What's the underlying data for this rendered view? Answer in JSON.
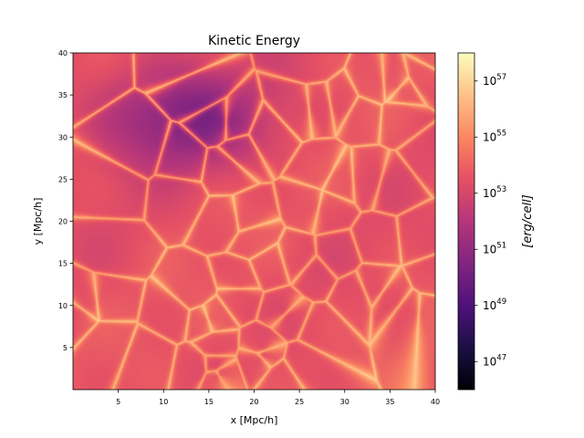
{
  "chart_data": {
    "type": "heatmap",
    "title": "Kinetic Energy",
    "xlabel": "x [Mpc/h]",
    "ylabel": "y [Mpc/h]",
    "xlim": [
      0,
      40
    ],
    "ylim": [
      0,
      40
    ],
    "xticks": [
      5,
      10,
      15,
      20,
      25,
      30,
      35,
      40
    ],
    "yticks": [
      5,
      10,
      15,
      20,
      25,
      30,
      35,
      40
    ],
    "grid": false,
    "colormap": "magma",
    "colorbar": {
      "label": "[erg/cell]",
      "scale": "log",
      "range_log10": [
        46,
        58
      ],
      "ticks_log10": [
        47,
        49,
        51,
        53,
        55,
        57
      ],
      "tick_base": "10"
    },
    "field_description_values": {
      "background_log10": 53.5,
      "filament_peak_log10": 56.5,
      "void_min_log10": 50.5
    },
    "colors": {
      "magma_stops": [
        "#000004",
        "#1c1044",
        "#4f127b",
        "#812581",
        "#b5367a",
        "#e55064",
        "#fb8761",
        "#fec287",
        "#fcfdbf"
      ]
    }
  }
}
